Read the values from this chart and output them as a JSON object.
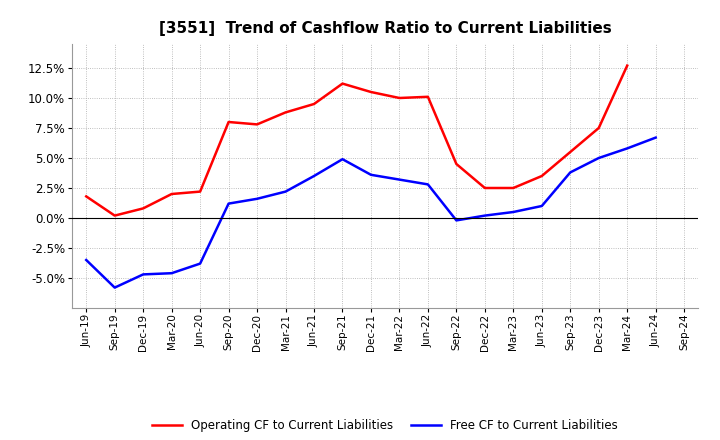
{
  "title": "[3551]  Trend of Cashflow Ratio to Current Liabilities",
  "x_labels": [
    "Jun-19",
    "Sep-19",
    "Dec-19",
    "Mar-20",
    "Jun-20",
    "Sep-20",
    "Dec-20",
    "Mar-21",
    "Jun-21",
    "Sep-21",
    "Dec-21",
    "Mar-22",
    "Jun-22",
    "Sep-22",
    "Dec-22",
    "Mar-23",
    "Jun-23",
    "Sep-23",
    "Dec-23",
    "Mar-24",
    "Jun-24",
    "Sep-24"
  ],
  "operating_cf": [
    1.8,
    0.2,
    0.8,
    2.0,
    2.2,
    8.0,
    7.8,
    8.8,
    9.5,
    11.2,
    10.5,
    10.0,
    10.1,
    4.5,
    2.5,
    2.5,
    3.5,
    5.5,
    7.5,
    12.7,
    null,
    null
  ],
  "free_cf": [
    -3.5,
    -5.8,
    -4.7,
    -4.6,
    -3.8,
    1.2,
    1.6,
    2.2,
    3.5,
    4.9,
    3.6,
    3.2,
    2.8,
    -0.2,
    0.2,
    0.5,
    1.0,
    3.8,
    5.0,
    5.8,
    6.7,
    null
  ],
  "ylim": [
    -7.5,
    14.5
  ],
  "yticks": [
    -5.0,
    -2.5,
    0.0,
    2.5,
    5.0,
    7.5,
    10.0,
    12.5
  ],
  "operating_color": "#ff0000",
  "free_color": "#0000ff",
  "grid_color": "#aaaaaa",
  "background_color": "#ffffff",
  "legend_operating": "Operating CF to Current Liabilities",
  "legend_free": "Free CF to Current Liabilities"
}
